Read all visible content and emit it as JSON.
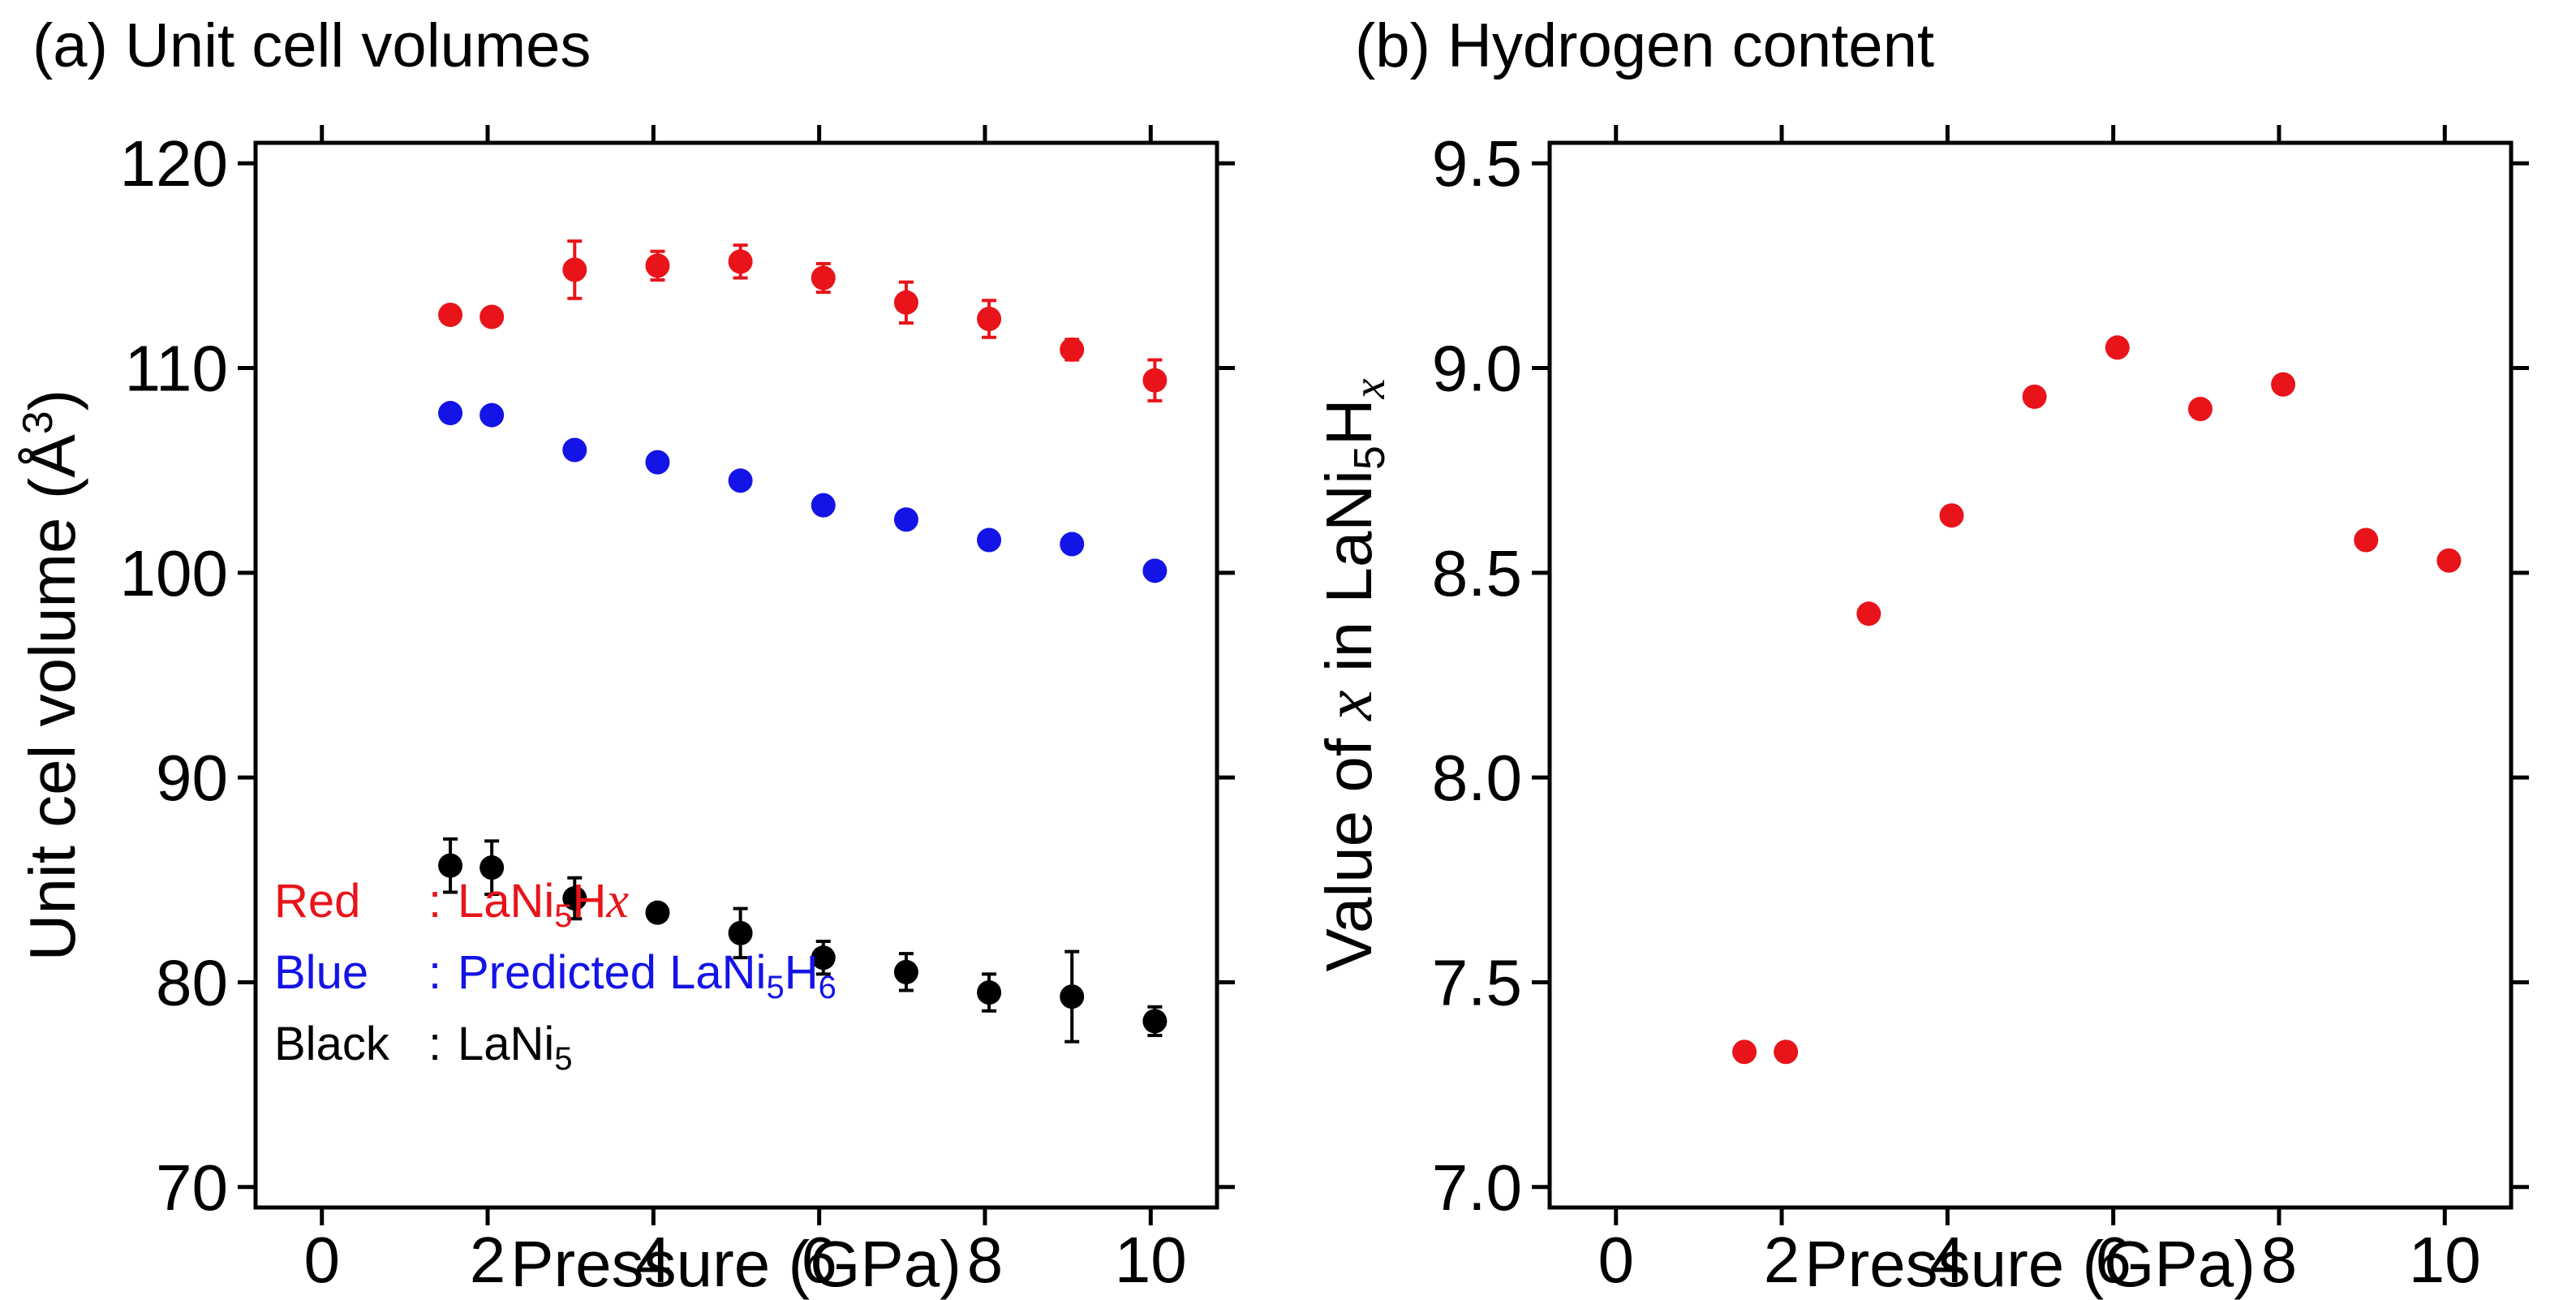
{
  "colors": {
    "red": "#e8141a",
    "blue": "#1414e6",
    "black": "#000000"
  },
  "chart_data": [
    {
      "type": "scatter",
      "title": "(a) Unit cell volumes",
      "xlabel": "Pressure (GPa)",
      "ylabel": "Unit cel volume (Å3)",
      "xlim": [
        -0.8,
        10.8
      ],
      "ylim": [
        69,
        121
      ],
      "xticks": [
        0,
        2,
        4,
        6,
        8,
        10
      ],
      "xtick_labels": [
        "0",
        "2",
        "4",
        "6",
        "8",
        "10"
      ],
      "yticks": [
        70,
        80,
        90,
        100,
        110,
        120
      ],
      "ytick_labels": [
        "70",
        "80",
        "90",
        "100",
        "110",
        "120"
      ],
      "legend": [
        {
          "label": "Red",
          "sep": ":",
          "text": "LaNi5Hx",
          "color_key": "red"
        },
        {
          "label": "Blue",
          "sep": ":",
          "text": "Predicted LaNi5H6",
          "color_key": "blue"
        },
        {
          "label": "Black",
          "sep": ":",
          "text": "LaNi5",
          "color_key": "black"
        }
      ],
      "legend_position": "bottom-left",
      "series": [
        {
          "name": "LaNi5Hx",
          "color_key": "red",
          "x": [
            1.55,
            2.05,
            3.05,
            4.05,
            5.05,
            6.05,
            7.05,
            8.05,
            9.05,
            10.05
          ],
          "y": [
            112.6,
            112.5,
            114.8,
            115.0,
            115.2,
            114.4,
            113.2,
            112.4,
            110.9,
            109.4
          ],
          "yerr": [
            0.4,
            0.4,
            1.4,
            0.7,
            0.8,
            0.7,
            1.0,
            0.9,
            0.5,
            1.0
          ]
        },
        {
          "name": "Predicted LaNi5H6",
          "color_key": "blue",
          "x": [
            1.55,
            2.05,
            3.05,
            4.05,
            5.05,
            6.05,
            7.05,
            8.05,
            9.05,
            10.05
          ],
          "y": [
            107.8,
            107.7,
            106.0,
            105.4,
            104.5,
            103.3,
            102.6,
            101.6,
            101.4,
            100.1
          ],
          "yerr": [
            0,
            0,
            0,
            0,
            0,
            0,
            0,
            0,
            0,
            0
          ]
        },
        {
          "name": "LaNi5",
          "color_key": "black",
          "x": [
            1.55,
            2.05,
            3.05,
            4.05,
            5.05,
            6.05,
            7.05,
            8.05,
            9.05,
            10.05
          ],
          "y": [
            85.7,
            85.6,
            84.1,
            83.4,
            82.4,
            81.2,
            80.5,
            79.5,
            79.3,
            78.1
          ],
          "yerr": [
            1.3,
            1.3,
            1.0,
            0.4,
            1.2,
            0.8,
            0.9,
            0.9,
            2.2,
            0.7
          ]
        }
      ]
    },
    {
      "type": "scatter",
      "title": "(b) Hydrogen content",
      "xlabel": "Pressure (GPa)",
      "ylabel": "Value of x in LaNi5Hx",
      "xlim": [
        -0.8,
        10.8
      ],
      "ylim": [
        6.95,
        9.55
      ],
      "xticks": [
        0,
        2,
        4,
        6,
        8,
        10
      ],
      "xtick_labels": [
        "0",
        "2",
        "4",
        "6",
        "8",
        "10"
      ],
      "yticks": [
        7.0,
        7.5,
        8.0,
        8.5,
        9.0,
        9.5
      ],
      "ytick_labels": [
        "7.0",
        "7.5",
        "8.0",
        "8.5",
        "9.0",
        "9.5"
      ],
      "series": [
        {
          "name": "LaNi5Hx",
          "color_key": "red",
          "x": [
            1.55,
            2.05,
            3.05,
            4.05,
            5.05,
            6.05,
            7.05,
            8.05,
            9.05,
            10.05
          ],
          "y": [
            7.33,
            7.33,
            8.4,
            8.64,
            8.93,
            9.05,
            8.9,
            8.96,
            8.58,
            8.53
          ]
        }
      ]
    }
  ]
}
